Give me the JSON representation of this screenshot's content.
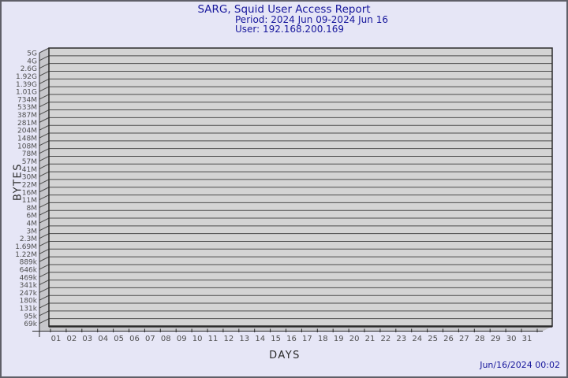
{
  "page": {
    "background_color": "#e6e6f6",
    "border_color": "#5f5f68"
  },
  "header": {
    "title": "SARG, Squid User Access Report",
    "period": "Period: 2024 Jun 09-2024 Jun 16",
    "user": "User: 192.168.200.169",
    "text_color": "#17179c"
  },
  "footer": {
    "timestamp": "Jun/16/2024 00:02"
  },
  "chart_data": {
    "type": "bar",
    "style": "3d",
    "title": "SARG, Squid User Access Report",
    "xlabel": "DAYS",
    "ylabel": "BYTES",
    "y_scale": "log",
    "grid": true,
    "legend": "none",
    "x_categories": [
      "01",
      "02",
      "03",
      "04",
      "05",
      "06",
      "07",
      "08",
      "09",
      "10",
      "11",
      "12",
      "13",
      "14",
      "15",
      "16",
      "17",
      "18",
      "19",
      "20",
      "21",
      "22",
      "23",
      "24",
      "25",
      "26",
      "27",
      "28",
      "29",
      "30",
      "31"
    ],
    "y_tick_labels": [
      "5G",
      "4G",
      "2.6G",
      "1.92G",
      "1.39G",
      "1.01G",
      "734M",
      "533M",
      "387M",
      "281M",
      "204M",
      "148M",
      "108M",
      "78M",
      "57M",
      "41M",
      "30M",
      "22M",
      "16M",
      "11M",
      "8M",
      "6M",
      "4M",
      "3M",
      "2.3M",
      "1.69M",
      "1.22M",
      "889k",
      "646k",
      "469k",
      "341k",
      "247k",
      "180k",
      "131k",
      "95k",
      "69k"
    ],
    "ylim_labels": [
      "69k",
      "5G"
    ],
    "series": [],
    "values": [],
    "colors": {
      "plot_face": "#d4d4d4",
      "plot_side": "#c7c7cb",
      "grid_line": "#4b4b4b",
      "frame_line": "#2b2b2b",
      "tick_text": "#4f4f4f"
    }
  }
}
